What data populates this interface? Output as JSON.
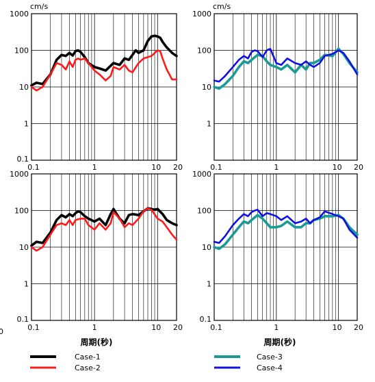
{
  "colors": {
    "Case-1": "#000000",
    "Case-2": "#ff1a1a",
    "Case-3": "#1a9a96",
    "Case-4": "#1010e0"
  },
  "legend": [
    "Case-1",
    "Case-2",
    "Case-3",
    "Case-4"
  ],
  "chart_data": [
    {
      "type": "line",
      "unit_label": "cm/s",
      "xlabel": "",
      "xscale": "log",
      "yscale": "log",
      "xlim": [
        0.1,
        20
      ],
      "ylim": [
        0.1,
        1000
      ],
      "x_ticks": [
        "0.1",
        "1",
        "10",
        "20"
      ],
      "y_ticks": [
        "0.1",
        "1",
        "10",
        "100",
        "1000"
      ],
      "grid": true,
      "series": [
        {
          "name": "Case-1",
          "x": [
            0.1,
            0.12,
            0.15,
            0.2,
            0.25,
            0.3,
            0.35,
            0.4,
            0.45,
            0.5,
            0.55,
            0.6,
            0.7,
            0.8,
            1.0,
            1.2,
            1.5,
            2.0,
            2.5,
            3.0,
            3.5,
            4.0,
            4.5,
            5.0,
            6.0,
            7.0,
            8.0,
            9.0,
            10.0,
            11.0,
            12.0,
            14.0,
            17.0,
            20.0
          ],
          "y": [
            11,
            13,
            12,
            22,
            55,
            75,
            70,
            85,
            72,
            95,
            100,
            90,
            65,
            45,
            35,
            32,
            28,
            45,
            40,
            60,
            55,
            75,
            100,
            85,
            100,
            180,
            240,
            250,
            240,
            220,
            170,
            120,
            85,
            70
          ]
        },
        {
          "name": "Case-2",
          "x": [
            0.1,
            0.12,
            0.15,
            0.2,
            0.25,
            0.3,
            0.35,
            0.4,
            0.45,
            0.5,
            0.55,
            0.6,
            0.7,
            0.8,
            1.0,
            1.2,
            1.5,
            1.8,
            2.0,
            2.5,
            3.0,
            3.5,
            4.0,
            5.0,
            6.0,
            8.0,
            10.0,
            11.0,
            12.0,
            14.0,
            17.0,
            20.0
          ],
          "y": [
            10,
            8,
            10,
            22,
            45,
            40,
            30,
            50,
            35,
            55,
            60,
            55,
            60,
            45,
            28,
            22,
            15,
            20,
            35,
            30,
            40,
            28,
            25,
            45,
            60,
            70,
            100,
            95,
            60,
            30,
            16,
            16
          ]
        }
      ]
    },
    {
      "type": "line",
      "unit_label": "cm/s",
      "xlabel": "",
      "xscale": "log",
      "yscale": "log",
      "xlim": [
        0.1,
        20
      ],
      "ylim": [
        0.1,
        1000
      ],
      "x_ticks": [
        "0.1",
        "1",
        "10",
        "20"
      ],
      "y_ticks": [
        "1",
        "10",
        "100",
        "1000"
      ],
      "grid": true,
      "series": [
        {
          "name": "Case-3",
          "x": [
            0.1,
            0.12,
            0.15,
            0.2,
            0.25,
            0.3,
            0.35,
            0.4,
            0.45,
            0.5,
            0.6,
            0.7,
            0.8,
            1.0,
            1.2,
            1.5,
            2.0,
            2.5,
            3.0,
            3.5,
            4.0,
            5.0,
            6.0,
            8.0,
            10.0,
            12.0,
            15.0,
            20.0
          ],
          "y": [
            10,
            9,
            12,
            20,
            35,
            50,
            45,
            55,
            65,
            75,
            70,
            50,
            40,
            35,
            30,
            40,
            25,
            40,
            30,
            45,
            45,
            55,
            75,
            70,
            110,
            80,
            45,
            25
          ]
        },
        {
          "name": "Case-4",
          "x": [
            0.1,
            0.12,
            0.15,
            0.2,
            0.25,
            0.3,
            0.35,
            0.4,
            0.45,
            0.5,
            0.6,
            0.7,
            0.8,
            1.0,
            1.2,
            1.5,
            2.0,
            2.5,
            3.0,
            3.5,
            4.0,
            5.0,
            6.0,
            8.0,
            10.0,
            12.0,
            15.0,
            20.0
          ],
          "y": [
            15,
            14,
            20,
            35,
            55,
            70,
            60,
            90,
            100,
            95,
            65,
            100,
            110,
            45,
            40,
            60,
            45,
            40,
            50,
            40,
            35,
            45,
            70,
            80,
            100,
            85,
            50,
            22
          ]
        }
      ]
    },
    {
      "type": "line",
      "unit_label": "",
      "xlabel": "周期(秒)",
      "xscale": "log",
      "yscale": "log",
      "xlim": [
        0.1,
        20
      ],
      "ylim": [
        0.1,
        1000
      ],
      "x_ticks": [
        "0.1",
        "1",
        "10",
        "20"
      ],
      "y_ticks": [
        "0.1",
        "1",
        "10",
        "100",
        "1000"
      ],
      "grid": true,
      "series": [
        {
          "name": "Case-1",
          "x": [
            0.1,
            0.12,
            0.15,
            0.2,
            0.25,
            0.3,
            0.35,
            0.4,
            0.45,
            0.5,
            0.55,
            0.6,
            0.7,
            0.8,
            1.0,
            1.2,
            1.5,
            1.8,
            2.0,
            2.5,
            3.0,
            3.5,
            4.0,
            5.0,
            6.0,
            7.0,
            8.0,
            9.0,
            10.0,
            12.0,
            14.0,
            17.0,
            20.0
          ],
          "y": [
            11,
            14,
            13,
            25,
            55,
            75,
            65,
            80,
            70,
            85,
            95,
            90,
            70,
            60,
            50,
            60,
            40,
            80,
            110,
            60,
            45,
            75,
            80,
            75,
            95,
            115,
            110,
            105,
            110,
            80,
            55,
            45,
            40
          ]
        },
        {
          "name": "Case-2",
          "x": [
            0.1,
            0.12,
            0.15,
            0.2,
            0.25,
            0.3,
            0.35,
            0.4,
            0.45,
            0.5,
            0.6,
            0.7,
            0.8,
            1.0,
            1.2,
            1.5,
            1.8,
            2.0,
            2.5,
            3.0,
            3.5,
            4.0,
            5.0,
            6.0,
            7.0,
            8.0,
            10.0,
            12.0,
            14.0,
            17.0,
            20.0
          ],
          "y": [
            10,
            8,
            10,
            22,
            40,
            45,
            40,
            55,
            40,
            55,
            60,
            60,
            40,
            30,
            45,
            30,
            45,
            90,
            60,
            35,
            45,
            40,
            60,
            95,
            115,
            105,
            60,
            50,
            35,
            22,
            16
          ]
        }
      ]
    },
    {
      "type": "line",
      "unit_label": "",
      "xlabel": "周期(秒)",
      "xscale": "log",
      "yscale": "log",
      "xlim": [
        0.1,
        20
      ],
      "ylim": [
        0.1,
        1000
      ],
      "x_ticks": [
        "0.1",
        "1",
        "10",
        "20"
      ],
      "y_ticks": [
        "0.1",
        "1",
        "10",
        "100",
        "1000"
      ],
      "grid": true,
      "series": [
        {
          "name": "Case-3",
          "x": [
            0.1,
            0.12,
            0.15,
            0.2,
            0.25,
            0.3,
            0.35,
            0.4,
            0.45,
            0.5,
            0.6,
            0.7,
            0.8,
            1.0,
            1.2,
            1.5,
            2.0,
            2.5,
            3.0,
            3.5,
            4.0,
            5.0,
            6.0,
            8.0,
            10.0,
            12.0,
            15.0,
            20.0
          ],
          "y": [
            10,
            9,
            12,
            22,
            35,
            50,
            45,
            55,
            65,
            75,
            60,
            45,
            35,
            35,
            38,
            50,
            35,
            35,
            45,
            45,
            55,
            60,
            70,
            70,
            75,
            60,
            35,
            22
          ]
        },
        {
          "name": "Case-4",
          "x": [
            0.1,
            0.12,
            0.15,
            0.2,
            0.25,
            0.3,
            0.35,
            0.4,
            0.45,
            0.5,
            0.6,
            0.7,
            0.8,
            1.0,
            1.2,
            1.5,
            2.0,
            2.5,
            3.0,
            3.5,
            4.0,
            5.0,
            6.0,
            8.0,
            10.0,
            12.0,
            15.0,
            20.0
          ],
          "y": [
            14,
            13,
            20,
            40,
            60,
            80,
            70,
            90,
            100,
            105,
            70,
            85,
            80,
            70,
            55,
            70,
            45,
            50,
            60,
            45,
            55,
            65,
            95,
            80,
            70,
            60,
            30,
            18
          ]
        }
      ]
    }
  ]
}
